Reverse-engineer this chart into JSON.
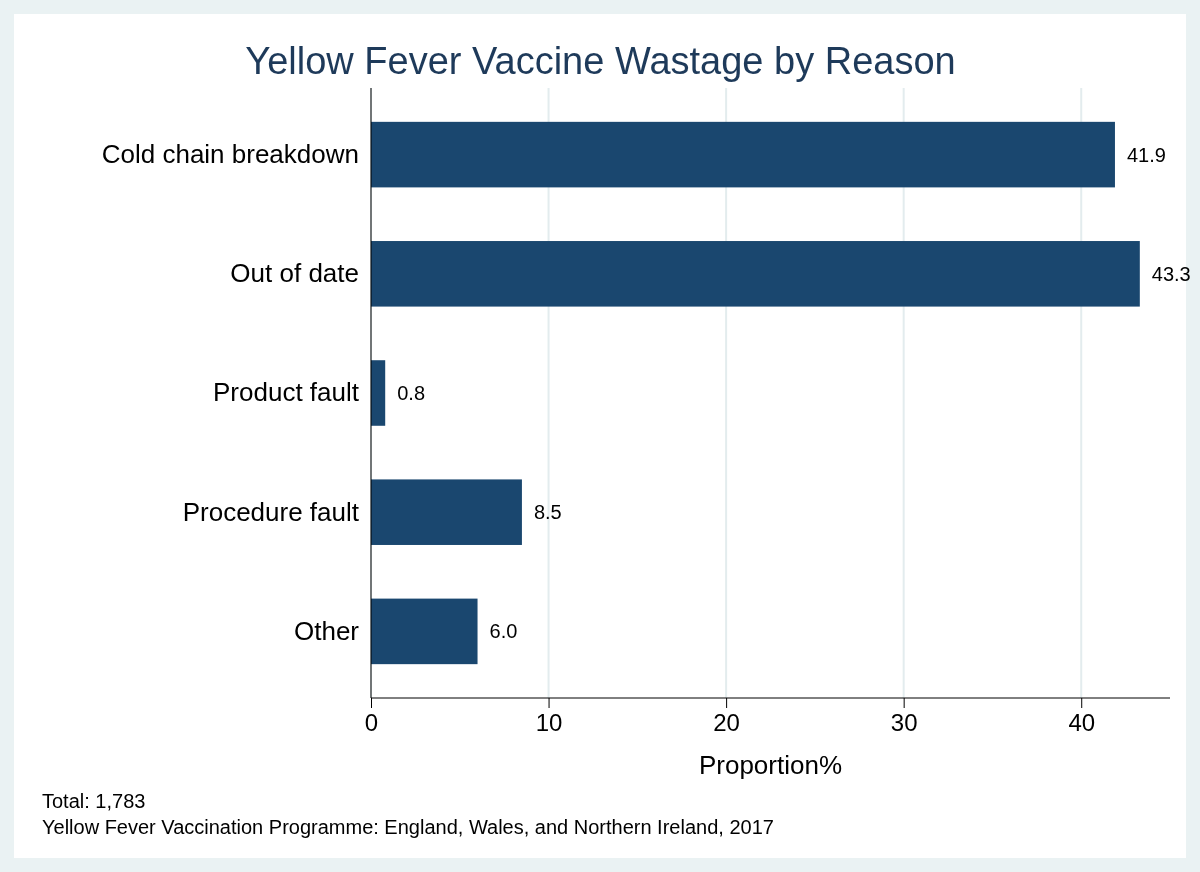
{
  "chart_data": {
    "type": "bar",
    "orientation": "horizontal",
    "title": "Yellow Fever Vaccine Wastage by Reason",
    "categories": [
      "Cold chain breakdown",
      "Out of date",
      "Product fault",
      "Procedure fault",
      "Other"
    ],
    "values": [
      41.9,
      43.3,
      0.8,
      8.5,
      6.0
    ],
    "color": "#1a476f",
    "value_labels": [
      "41.9",
      "43.3",
      "0.8",
      "8.5",
      "6.0"
    ],
    "xlim": [
      0,
      45
    ],
    "xticks": [
      0,
      10,
      20,
      30,
      40
    ],
    "grid": "x",
    "xlabel": "Proportion%",
    "annotations": [
      "Total: 1,783",
      "Yellow Fever Vaccination Programme: England, Wales, and Northern Ireland, 2017"
    ]
  }
}
